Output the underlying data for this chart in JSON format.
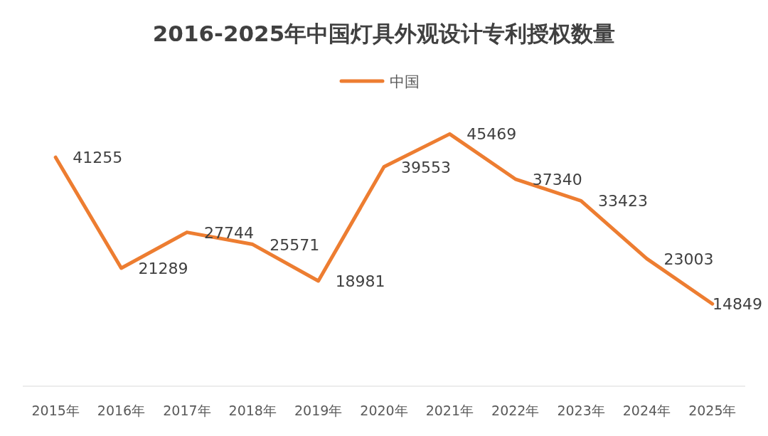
{
  "chart_data": {
    "type": "line",
    "title": "2016-2025年中国灯具外观设计专利授权数量",
    "categories": [
      "2015年",
      "2016年",
      "2017年",
      "2018年",
      "2019年",
      "2020年",
      "2021年",
      "2022年",
      "2023年",
      "2024年",
      "2025年"
    ],
    "series": [
      {
        "name": "中国",
        "color": "#ed7d31",
        "values": [
          41255,
          21289,
          27744,
          25571,
          18981,
          39553,
          45469,
          37340,
          33423,
          23003,
          14849
        ]
      }
    ],
    "data_labels": true,
    "legend": "top",
    "marker": "none",
    "line_style": "solid"
  }
}
